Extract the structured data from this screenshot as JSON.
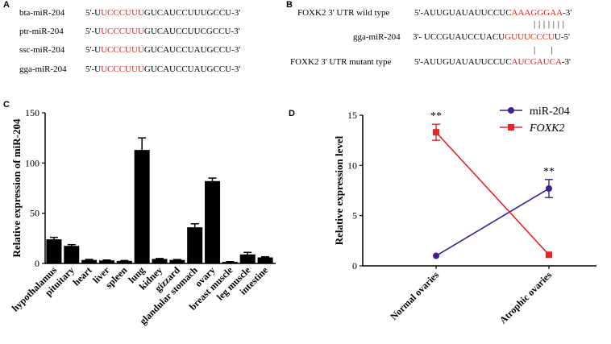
{
  "panels": {
    "a": {
      "letter": "A",
      "rows": [
        {
          "name": "bta-miR-204",
          "pre": "5'-U",
          "red": "UCCCUUU",
          "post": "GUCAUCCUUUGCCU-3'"
        },
        {
          "name": "ptr-miR-204",
          "pre": "5'-U",
          "red": "UCCCUUU",
          "post": "GUCAUCCUUCGCCU-3'"
        },
        {
          "name": "ssc-miR-204",
          "pre": "5'-U",
          "red": "UCCCUUU",
          "post": "GUCAUCCUAUGCCU-3'"
        },
        {
          "name": "gga-miR-204",
          "pre": "5'-U",
          "red": "UCCCUUU",
          "post": "GUCAUCCUAUGCCU-3'"
        }
      ]
    },
    "b": {
      "letter": "B",
      "rows": [
        {
          "name": "FOXK2 3' UTR wild type",
          "pre": "5'-AUUGUAUAUUCCUC",
          "red": "AAAGGGAA",
          "post": "-3'"
        },
        {
          "name": "gga-miR-204",
          "pre": "3'- UCCGUAUCCUACU",
          "red": "GUUUCCCU",
          "post": "U-5'"
        },
        {
          "name": "FOXK2 3' UTR mutant type",
          "pre": "5'-AUUGUAUAUUCCUC",
          "red": "AUCGAUCA",
          "post": "-3'"
        }
      ],
      "pairing_marks": "| | | | | | |",
      "mutant_marks": "|       |"
    },
    "c": {
      "letter": "C"
    },
    "d": {
      "letter": "D"
    }
  },
  "chart_data": [
    {
      "type": "bar",
      "ylabel": "Relative expression of miR-204",
      "xlabel": "",
      "ylim": [
        0,
        150
      ],
      "yticks": [
        "0",
        "50",
        "100",
        "150"
      ],
      "categories": [
        "hypothalamus",
        "pituitary",
        "heart",
        "liver",
        "spleen",
        "lung",
        "kidney",
        "gizzard",
        "glandular stomach",
        "ovary",
        "breast muscle",
        "leg muscle",
        "intestine"
      ],
      "values": [
        24,
        17.5,
        3.5,
        3,
        2.5,
        113,
        4.5,
        3.5,
        36,
        82,
        1.5,
        9,
        6
      ],
      "errors": [
        2,
        1.2,
        0.5,
        0.4,
        0.4,
        12,
        0.4,
        0.4,
        3.5,
        3,
        0.3,
        2,
        0.6
      ],
      "color": "#000000"
    },
    {
      "type": "line",
      "ylabel": "Relative expression level",
      "xlabel": "",
      "ylim": [
        0,
        15
      ],
      "yticks": [
        "0",
        "5",
        "10",
        "15"
      ],
      "categories": [
        "Normal ovaries",
        "Atrophic ovaries"
      ],
      "legend_position": "top-right",
      "series": [
        {
          "name": "miR-204",
          "values": [
            1,
            7.7
          ],
          "errors": [
            0,
            0.9
          ],
          "color": "#3d1f8f",
          "marker": "circle",
          "italic": false
        },
        {
          "name": "FOXK2",
          "values": [
            13.3,
            1.1
          ],
          "errors": [
            0.8,
            0
          ],
          "color": "#e4262b",
          "marker": "square",
          "italic": true
        }
      ],
      "annotations": [
        "**",
        "**"
      ]
    }
  ]
}
